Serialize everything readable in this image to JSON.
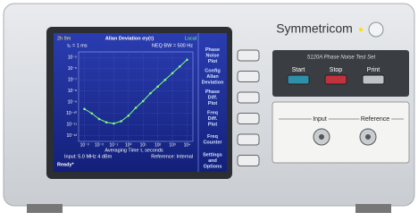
{
  "device": {
    "brand": "Symmetricom",
    "model": "5120A Phase Noise Test Set"
  },
  "screen": {
    "elapsed": "2h 9m",
    "title": "Allan Deviation σy(τ)",
    "mode": "Local",
    "tau0": "τ₀ = 1 ms",
    "bandwidth": "NEQ BW = 500 Hz",
    "x_label": "Averaging Time τ, seconds",
    "input": "Input: 5.0 MHz 4 dBm",
    "reference": "Reference: Internal",
    "status": "Ready*",
    "plot": {
      "xlim": [
        -3.4,
        4.4
      ],
      "ylim": [
        -12.5,
        -4.5
      ],
      "xticks": [
        {
          "value": -3,
          "label": "10⁻³"
        },
        {
          "value": -2,
          "label": "10⁻²"
        },
        {
          "value": -1,
          "label": "10⁻¹"
        },
        {
          "value": 0,
          "label": "10⁰"
        },
        {
          "value": 1,
          "label": "10¹"
        },
        {
          "value": 2,
          "label": "10²"
        },
        {
          "value": 3,
          "label": "10³"
        },
        {
          "value": 4,
          "label": "10⁴"
        }
      ],
      "yticks": [
        {
          "value": -5,
          "label": "10⁻⁵"
        },
        {
          "value": -6,
          "label": "10⁻⁶"
        },
        {
          "value": -7,
          "label": "10⁻⁷"
        },
        {
          "value": -8,
          "label": "10⁻⁸"
        },
        {
          "value": -9,
          "label": "10⁻⁹"
        },
        {
          "value": -10,
          "label": "10⁻¹⁰"
        },
        {
          "value": -11,
          "label": "10⁻¹¹"
        },
        {
          "value": -12,
          "label": "10⁻¹²"
        }
      ],
      "x": [
        -3,
        -2.5,
        -2,
        -1.5,
        -1,
        -0.5,
        0,
        0.5,
        1,
        1.5,
        2,
        2.5,
        3,
        3.5,
        4
      ],
      "y": [
        -9.6,
        -10.0,
        -10.5,
        -10.8,
        -10.9,
        -10.7,
        -10.2,
        -9.5,
        -8.9,
        -8.2,
        -7.6,
        -7.0,
        -6.4,
        -5.8,
        -5.2
      ],
      "color": "#7dff7d"
    }
  },
  "menu": [
    [
      "Phase",
      "Noise",
      "Plot"
    ],
    [
      "Config",
      "Allan",
      "Deviation"
    ],
    [
      "Phase",
      "Diff.",
      "Plot"
    ],
    [
      "Freq",
      "Diff.",
      "Plot"
    ],
    [
      "Freq",
      "Counter"
    ],
    [
      "Settings",
      "and",
      "Options"
    ]
  ],
  "buttons": [
    "Start",
    "Stop",
    "Print"
  ],
  "connectors": [
    "Input",
    "Reference"
  ]
}
